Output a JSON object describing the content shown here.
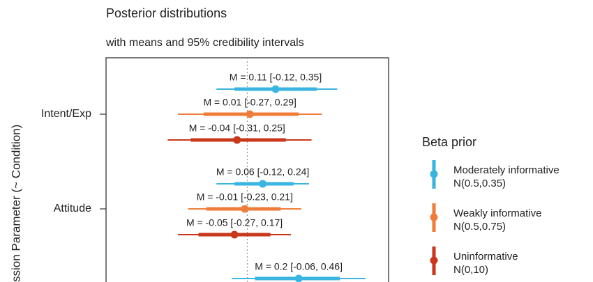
{
  "chart_data": {
    "type": "interval",
    "title": "Posterior distributions",
    "subtitle": "with means and 95% credibility intervals",
    "y_label": "ssion Parameter (~ Condition)",
    "categories": [
      "Intent/Exp",
      "Attitude",
      null
    ],
    "xlim": [
      -0.55,
      0.55
    ],
    "reference_line": 0,
    "legend_title": "Beta prior",
    "series": [
      {
        "name": "Moderately informative",
        "prior_label": "N(0.5,0.35)",
        "color": "#3ab4e0",
        "values": [
          0.11,
          0.06,
          0.2
        ],
        "lower": [
          -0.12,
          -0.12,
          -0.06
        ],
        "upper": [
          0.35,
          0.24,
          0.46
        ],
        "inner_lower": [
          -0.05,
          -0.05,
          0.03
        ],
        "inner_upper": [
          0.27,
          0.18,
          0.36
        ],
        "value_labels": [
          "M = 0.11 [-0.12, 0.35]",
          "M = 0.06 [-0.12, 0.24]",
          "M = 0.2 [-0.06, 0.46]"
        ]
      },
      {
        "name": "Weakly informative",
        "prior_label": "N(0.5,0.75)",
        "color": "#ef7d3a",
        "values": [
          0.01,
          -0.01,
          null
        ],
        "lower": [
          -0.27,
          -0.23,
          null
        ],
        "upper": [
          0.29,
          0.21,
          null
        ],
        "inner_lower": [
          -0.17,
          -0.16,
          null
        ],
        "inner_upper": [
          0.2,
          0.13,
          null
        ],
        "value_labels": [
          "M = 0.01 [-0.27, 0.29]",
          "M = -0.01 [-0.23, 0.21]",
          null
        ]
      },
      {
        "name": "Uninformative",
        "prior_label": "N(0,10)",
        "color": "#c9381b",
        "values": [
          -0.04,
          -0.05,
          null
        ],
        "lower": [
          -0.31,
          -0.27,
          null
        ],
        "upper": [
          0.25,
          0.17,
          null
        ],
        "inner_lower": [
          -0.22,
          -0.19,
          null
        ],
        "inner_upper": [
          0.15,
          0.09,
          null
        ],
        "value_labels": [
          "M = -0.04 [-0.31, 0.25]",
          "M = -0.05 [-0.27, 0.17]",
          null
        ]
      }
    ]
  }
}
